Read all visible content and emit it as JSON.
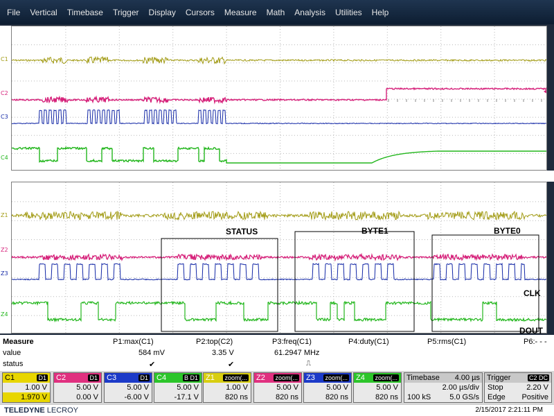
{
  "menu": [
    "File",
    "Vertical",
    "Timebase",
    "Trigger",
    "Display",
    "Cursors",
    "Measure",
    "Math",
    "Analysis",
    "Utilities",
    "Help"
  ],
  "traces_top": [
    "C1",
    "C2",
    "C3",
    "C4"
  ],
  "traces_bottom": [
    "Z1",
    "Z2",
    "Z3",
    "Z4"
  ],
  "annotations": {
    "status": "STATUS",
    "byte1": "BYTE1",
    "byte0": "BYTE0",
    "clk": "CLK",
    "dout": "DOUT"
  },
  "colors": {
    "c1": "#a19a12",
    "c2": "#d6217a",
    "c3": "#1227a6",
    "c4": "#22b61c"
  },
  "measure": {
    "row_labels": [
      "Measure",
      "value",
      "status"
    ],
    "params": [
      {
        "name": "P1:max(C1)",
        "value": "584 mV",
        "status": "✔"
      },
      {
        "name": "P2:top(C2)",
        "value": "3.35 V",
        "status": "✔"
      },
      {
        "name": "P3:freq(C1)",
        "value": "61.2947 MHz",
        "status": "⎍"
      },
      {
        "name": "P4:duty(C1)",
        "value": "",
        "status": ""
      },
      {
        "name": "P5:rms(C1)",
        "value": "",
        "status": ""
      },
      {
        "name": "P6:- - -",
        "value": "",
        "status": ""
      }
    ]
  },
  "channels": [
    {
      "name": "C1",
      "tag": "D1",
      "v1": "1.00 V",
      "v2": "1.970 V",
      "color": "#e8d600"
    },
    {
      "name": "C2",
      "tag": "D1",
      "v1": "5.00 V",
      "v2": "0.00 V",
      "color": "#e0307f"
    },
    {
      "name": "C3",
      "tag": "D1",
      "v1": "5.00 V",
      "v2": "-6.00 V",
      "color": "#1c3ac8"
    },
    {
      "name": "C4",
      "tag": "B D1",
      "v1": "5.00 V",
      "v2": "-17.1 V",
      "color": "#2cc52a"
    },
    {
      "name": "Z1",
      "tag": "zoom(...",
      "v1": "1.00 V",
      "v2": "820 ns",
      "color": "#d8ce10"
    },
    {
      "name": "Z2",
      "tag": "zoom(...",
      "v1": "5.00 V",
      "v2": "820 ns",
      "color": "#e0307f"
    },
    {
      "name": "Z3",
      "tag": "zoom(...",
      "v1": "5.00 V",
      "v2": "820 ns",
      "color": "#1c3ac8"
    },
    {
      "name": "Z4",
      "tag": "zoom(...",
      "v1": "5.00 V",
      "v2": "820 ns",
      "color": "#2cc52a"
    }
  ],
  "timebase": {
    "label": "Timebase",
    "value": "4.00 µs",
    "div": "2.00 µs/div",
    "samples": "100 kS",
    "rate": "5.0 GS/s"
  },
  "trigger": {
    "label": "Trigger",
    "source": "C2 DC",
    "mode": "Stop",
    "level": "2.20 V",
    "type": "Edge",
    "slope": "Positive"
  },
  "footer": {
    "brand": "TELEDYNE",
    "brand2": "LECROY",
    "datetime": "2/15/2017 2:21:11 PM"
  }
}
